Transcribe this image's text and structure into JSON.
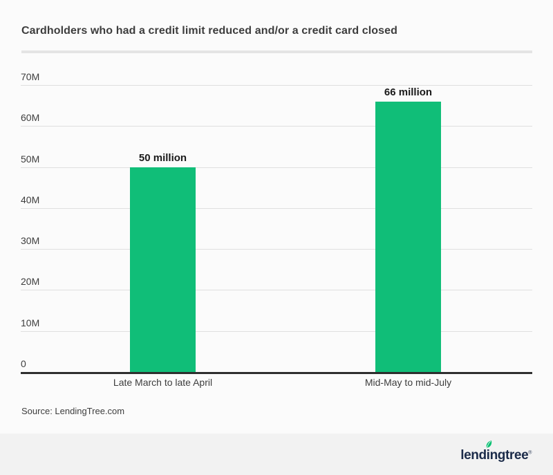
{
  "page": {
    "source_note": "Source: LendingTree.com",
    "colors": {
      "background": "#fbfbfb",
      "bar": "#10be78",
      "gridline": "#dfdfdf",
      "axis": "#2e2e2e",
      "title_text": "#3d3d3d",
      "footer_background": "#f2f2f2",
      "logo_navy": "#1b2b49",
      "leaf_green": "#00c170"
    }
  },
  "footer": {
    "logo": {
      "part_pre": "lend",
      "part_i": "i",
      "part_post": "ngtree",
      "trademark": "®",
      "leaf_icon": "leaf-icon"
    }
  },
  "chart_data": {
    "type": "bar",
    "title": "Cardholders who had a credit limit reduced and/or a credit card closed",
    "categories": [
      "Late March to late April",
      "Mid-May to mid-July"
    ],
    "values": [
      50000000,
      66000000
    ],
    "values_millions": [
      50,
      66
    ],
    "value_labels": [
      "50 million",
      "66 million"
    ],
    "xlabel": "",
    "ylabel": "",
    "ylim_millions": [
      0,
      70
    ],
    "yticks": [
      {
        "value": 0,
        "label": "0"
      },
      {
        "value": 10,
        "label": "10M"
      },
      {
        "value": 20,
        "label": "20M"
      },
      {
        "value": 30,
        "label": "30M"
      },
      {
        "value": 40,
        "label": "40M"
      },
      {
        "value": 50,
        "label": "50M"
      },
      {
        "value": 60,
        "label": "60M"
      },
      {
        "value": 70,
        "label": "70M"
      }
    ],
    "grid": true,
    "legend": false,
    "bar_color": "#10be78"
  }
}
